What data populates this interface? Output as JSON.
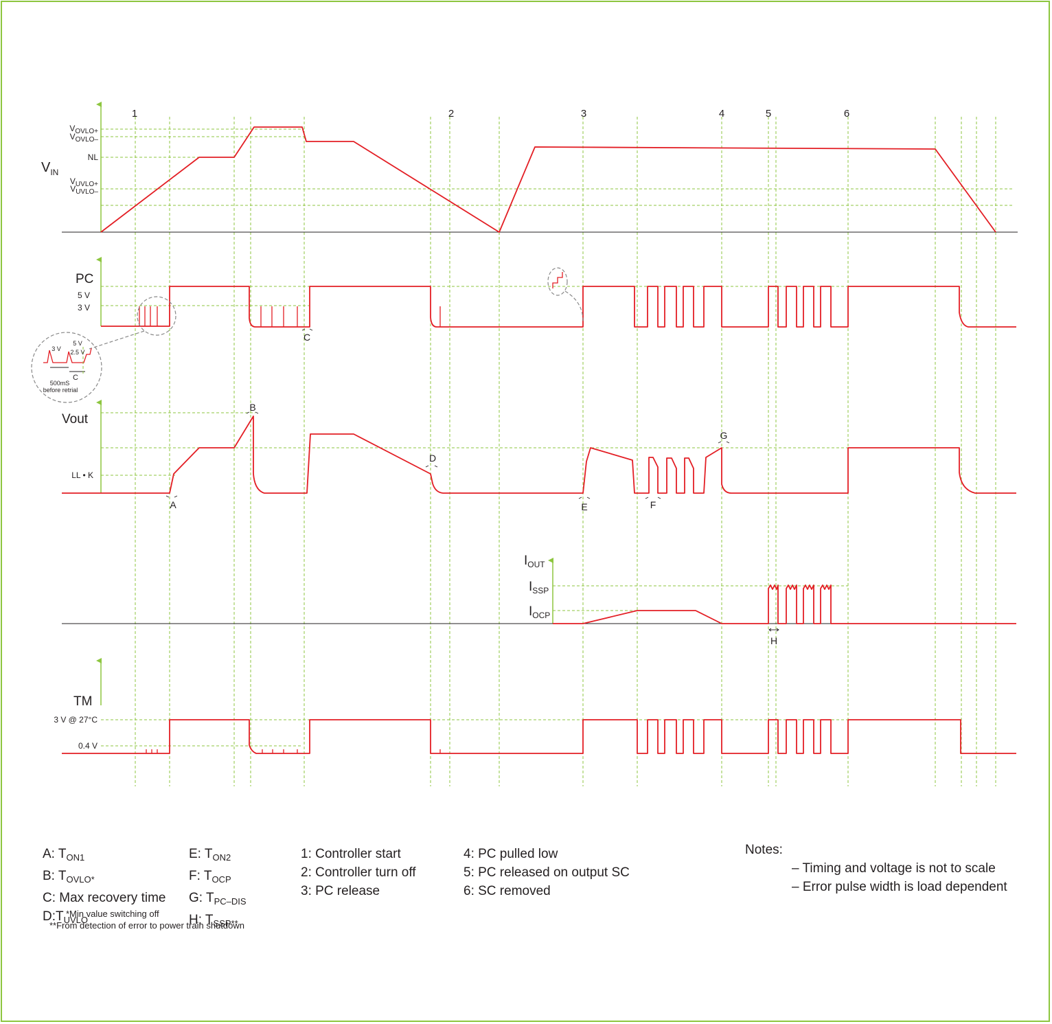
{
  "colors": {
    "frame": "#8dc63f",
    "grid": "#8dc63f",
    "signal": "#e31e24",
    "text": "#231f20"
  },
  "events": [
    "1",
    "2",
    "3",
    "4",
    "5",
    "6"
  ],
  "vin": {
    "title_main": "V",
    "title_sub": "IN",
    "levels": [
      {
        "main": "V",
        "sub": "OVLO+"
      },
      {
        "main": "V",
        "sub": "OVLO–"
      },
      {
        "main": "NL",
        "sub": ""
      },
      {
        "main": "V",
        "sub": "UVLO+"
      },
      {
        "main": "V",
        "sub": "UVLO–"
      }
    ]
  },
  "pc": {
    "title": "PC",
    "levels": [
      "5 V",
      "3 V"
    ],
    "marker": "C"
  },
  "inset": {
    "v1": "3 V",
    "v2": "5 V",
    "v3": "2.5 V",
    "time": "500mS",
    "note": "before retrial",
    "marker": "C"
  },
  "vout": {
    "title": "Vout",
    "level": "LL • K",
    "markers": [
      "A",
      "B",
      "D",
      "E",
      "F",
      "G"
    ]
  },
  "iout": {
    "title_main": "I",
    "title_sub": "OUT",
    "levels": [
      {
        "main": "I",
        "sub": "SSP"
      },
      {
        "main": "I",
        "sub": "OCP"
      }
    ],
    "marker": "H"
  },
  "tm": {
    "title": "TM",
    "levels": [
      "3 V @ 27°C",
      "0.4 V"
    ]
  },
  "legend_times": [
    {
      "prefix": "A: T",
      "sub": "ON1"
    },
    {
      "prefix": "B: T",
      "sub": "OVLO*"
    },
    {
      "prefix": "C: Max recovery time",
      "sub": ""
    },
    {
      "prefix": "D:T",
      "sub": "UVLO"
    }
  ],
  "legend_times2": [
    {
      "prefix": "E: T",
      "sub": "ON2"
    },
    {
      "prefix": "F: T",
      "sub": "OCP"
    },
    {
      "prefix": "G: T",
      "sub": "PC–DIS"
    },
    {
      "prefix": "H: T",
      "sub": "SSP**"
    }
  ],
  "legend_events1": [
    "1: Controller start",
    "2: Controller turn off",
    "3: PC release"
  ],
  "legend_events2": [
    "4: PC pulled low",
    "5: PC released on output SC",
    "6: SC removed"
  ],
  "notes": {
    "title": "Notes:",
    "items": [
      "– Timing and voltage is not to scale",
      "– Error pulse width is load dependent"
    ]
  },
  "footnotes": [
    "*Min value switching off",
    "**From detection of error to power train shutdown"
  ]
}
